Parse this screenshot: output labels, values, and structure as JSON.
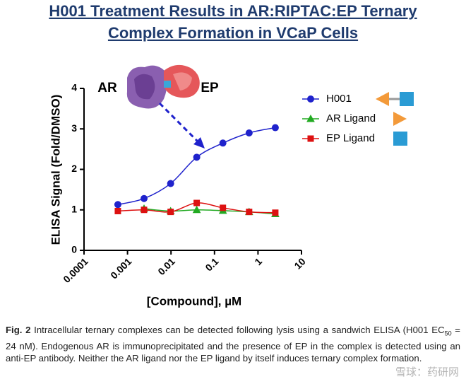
{
  "chart_data": {
    "type": "line",
    "title_lines": [
      "H001 Treatment Results in AR:RIPTAC:EP Ternary",
      "Complex Formation in VCaP Cells"
    ],
    "xlabel": "[Compound], µM",
    "ylabel": "ELISA Signal (Fold/DMSO)",
    "annotations": [
      "AR",
      "EP"
    ],
    "xscale": "log",
    "xlim": [
      0.0001,
      10
    ],
    "xticks": [
      0.0001,
      0.001,
      0.01,
      0.1,
      1,
      10
    ],
    "ylim": [
      0,
      4
    ],
    "yticks": [
      0,
      1,
      2,
      3,
      4
    ],
    "legend": "right",
    "series": [
      {
        "name": "H001",
        "color": "#1f22cc",
        "marker": "circle",
        "x": [
          0.0006,
          0.0024,
          0.0098,
          0.039,
          0.156,
          0.625,
          2.5
        ],
        "values": [
          1.13,
          1.28,
          1.65,
          2.3,
          2.65,
          2.9,
          3.03
        ]
      },
      {
        "name": "AR Ligand",
        "color": "#22aa22",
        "marker": "triangle",
        "x": [
          0.0024,
          0.0098,
          0.039,
          0.156,
          0.625,
          2.5
        ],
        "values": [
          1.03,
          0.97,
          1.0,
          0.98,
          0.95,
          0.9
        ]
      },
      {
        "name": "EP Ligand",
        "color": "#dd1111",
        "marker": "square",
        "x": [
          0.0006,
          0.0024,
          0.0098,
          0.039,
          0.156,
          0.625,
          2.5
        ],
        "values": [
          0.97,
          1.0,
          0.95,
          1.17,
          1.05,
          0.95,
          0.93
        ]
      }
    ]
  },
  "caption": {
    "label": "Fig. 2",
    "text_a": " Intracellular ternary complexes can be detected following lysis using a sandwich ELISA (H001 EC",
    "subscript": "50",
    "text_b": " = 24 nM). Endogenous AR is immunoprecipitated and the presence of EP in the complex is detected using an anti-EP antibody. Neither the AR ligand nor the EP ligand by itself induces ternary complex formation."
  },
  "watermark": "雪球：药研网"
}
